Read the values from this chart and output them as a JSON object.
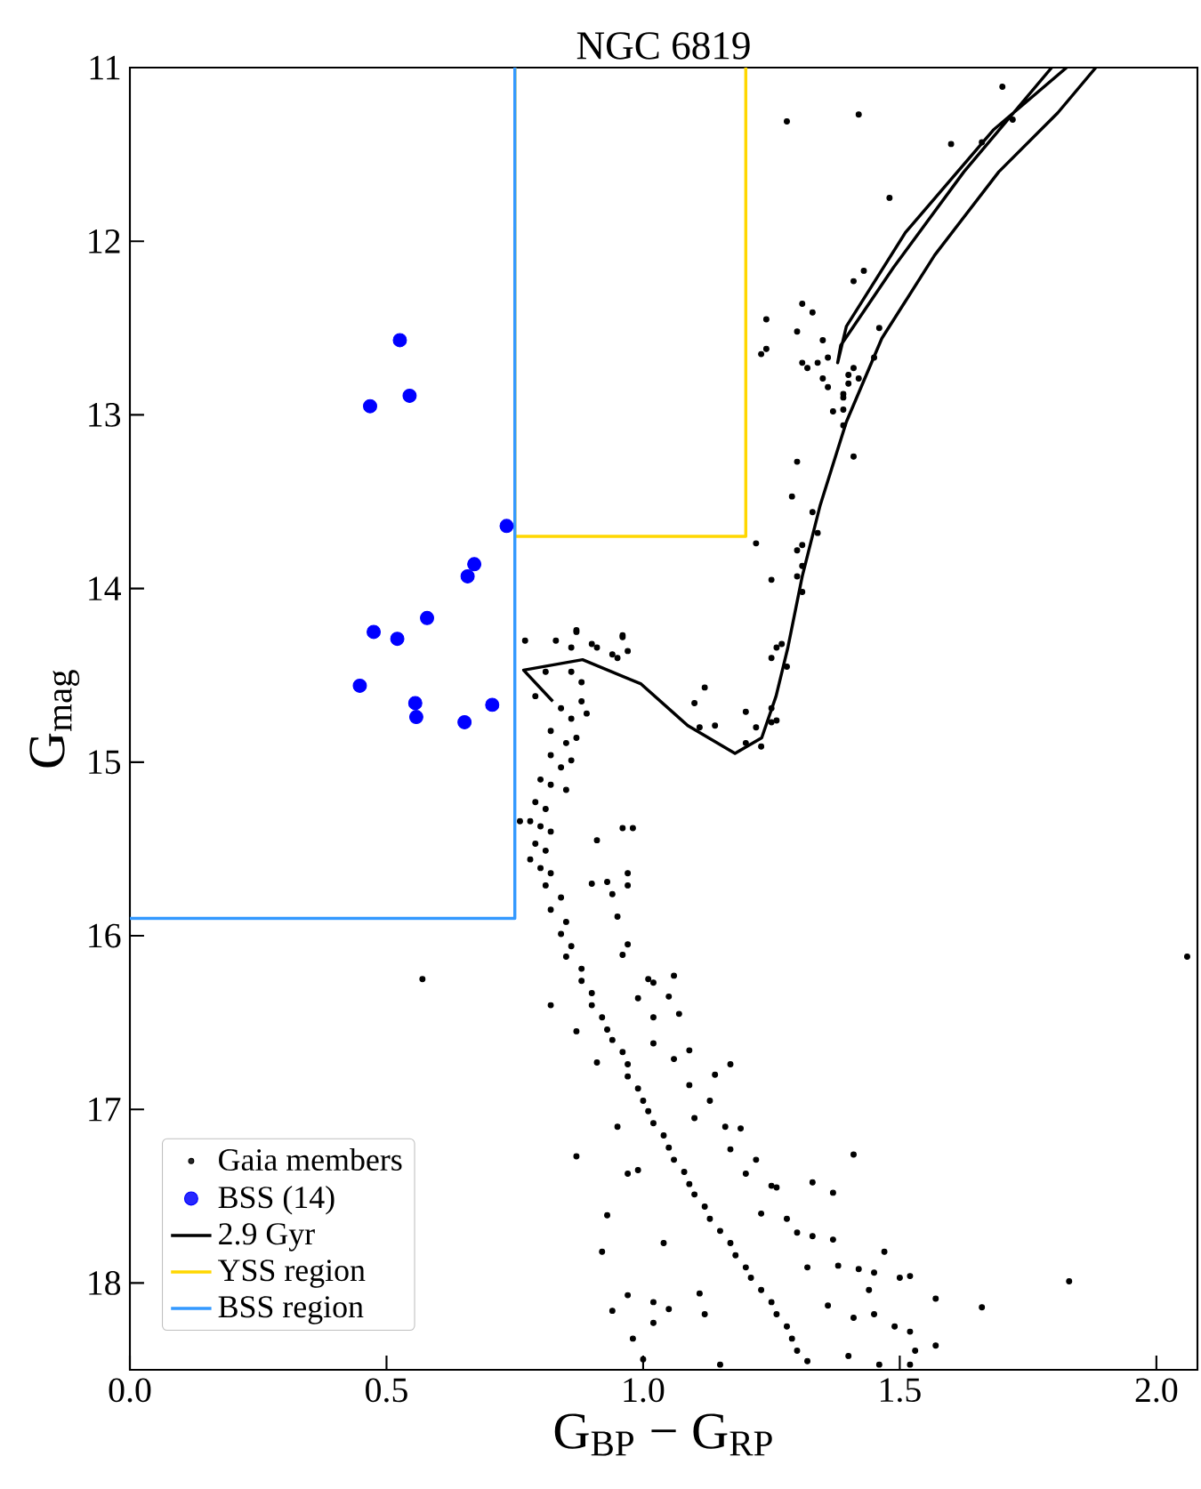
{
  "chart_data": {
    "type": "scatter",
    "title": "NGC 6819",
    "xlabel": "G$_{BP}$ − G$_{RP}$",
    "ylabel": "G$_{mag}$",
    "xlim": [
      0,
      2.08
    ],
    "ylim": [
      18.5,
      11
    ],
    "xticks": [
      {
        "value": 0,
        "label": "0.0"
      },
      {
        "value": 0.5,
        "label": "0.5"
      },
      {
        "value": 1,
        "label": "1.0"
      },
      {
        "value": 1.5,
        "label": "1.5"
      },
      {
        "value": 2,
        "label": "2.0"
      }
    ],
    "yticks": [
      11,
      12,
      13,
      14,
      15,
      16,
      17,
      18
    ],
    "legend": "bottom left",
    "series": [
      {
        "name": "Gaia members",
        "marker": "circle",
        "color": "#000000",
        "x": [
          1.28,
          1.42,
          1.7,
          1.6,
          1.66,
          1.72,
          1.48,
          1.43,
          1.41,
          1.31,
          1.33,
          1.24,
          1.3,
          1.24,
          1.23,
          1.35,
          1.31,
          1.32,
          1.34,
          1.35,
          1.36,
          1.36,
          1.4,
          1.41,
          1.42,
          1.4,
          1.39,
          1.39,
          1.37,
          1.39,
          1.39,
          1.46,
          1.45,
          1.41,
          1.3,
          1.29,
          1.33,
          1.34,
          1.22,
          1.3,
          1.31,
          1.31,
          1.25,
          1.3,
          1.31,
          1.27,
          1.26,
          1.25,
          1.28,
          1.12,
          1.1,
          1.11,
          1.14,
          1.2,
          1.22,
          1.2,
          1.23,
          1.25,
          1.26,
          1.25,
          0.77,
          0.83,
          0.87,
          0.86,
          0.9,
          0.91,
          0.94,
          0.96,
          0.97,
          0.95,
          0.86,
          0.81,
          0.88,
          0.79,
          0.87,
          0.96,
          2.06,
          0.57,
          1.83,
          0.84,
          0.86,
          0.88,
          0.89,
          0.82,
          0.85,
          0.87,
          0.82,
          0.84,
          0.86,
          0.8,
          0.82,
          0.85,
          0.79,
          0.81,
          0.78,
          0.8,
          0.82,
          0.79,
          0.81,
          0.8,
          0.82,
          0.81,
          0.84,
          0.82,
          0.85,
          0.84,
          0.86,
          0.85,
          0.88,
          0.88,
          0.9,
          0.9,
          0.92,
          0.93,
          0.94,
          0.96,
          0.97,
          0.97,
          0.99,
          1.0,
          1.01,
          1.02,
          1.04,
          1.05,
          1.06,
          1.08,
          1.09,
          1.1,
          1.12,
          1.13,
          1.15,
          1.17,
          1.18,
          1.2,
          1.21,
          1.23,
          1.25,
          1.26,
          1.28,
          1.29,
          1.3,
          1.32,
          0.91,
          0.96,
          0.98,
          0.97,
          0.97,
          0.9,
          0.93,
          0.94,
          0.95,
          0.97,
          0.96,
          1.01,
          1.02,
          1.06,
          1.05,
          1.07,
          1.02,
          0.99,
          1.02,
          1.09,
          1.06,
          1.14,
          1.17,
          1.09,
          1.13,
          1.1,
          1.16,
          1.19,
          1.17,
          1.22,
          1.2,
          1.25,
          1.26,
          1.33,
          1.37,
          1.41,
          1.23,
          1.28,
          1.3,
          1.33,
          1.37,
          1.32,
          1.38,
          1.42,
          1.45,
          1.47,
          1.5,
          1.52,
          1.44,
          1.36,
          1.41,
          1.45,
          1.49,
          1.52,
          1.57,
          1.66,
          1.53,
          1.57,
          1.4,
          1.46,
          1.52,
          0.78,
          0.76,
          0.82,
          0.87,
          0.91,
          0.95,
          0.87,
          0.97,
          0.99,
          0.93,
          0.92,
          1.04,
          0.97,
          0.94,
          1.02,
          1.02,
          1.05,
          0.98,
          1.0,
          1.15,
          1.11,
          1.12
        ],
        "values": [
          11.31,
          11.27,
          11.11,
          11.44,
          11.43,
          11.3,
          11.75,
          12.17,
          12.23,
          12.36,
          12.41,
          12.45,
          12.52,
          12.62,
          12.65,
          12.57,
          12.7,
          12.73,
          12.7,
          12.79,
          12.84,
          12.67,
          12.77,
          12.73,
          12.79,
          12.82,
          12.88,
          12.9,
          12.98,
          12.97,
          13.06,
          12.5,
          12.67,
          13.24,
          13.27,
          13.47,
          13.56,
          13.68,
          13.74,
          13.78,
          13.75,
          13.87,
          13.95,
          13.93,
          14.02,
          14.32,
          14.34,
          14.4,
          14.45,
          14.57,
          14.66,
          14.8,
          14.79,
          14.71,
          14.8,
          14.89,
          14.91,
          14.77,
          14.76,
          14.69,
          14.3,
          14.3,
          14.25,
          14.34,
          14.32,
          14.34,
          14.38,
          14.28,
          14.36,
          14.4,
          14.48,
          14.48,
          14.54,
          14.62,
          14.24,
          14.27,
          16.12,
          16.25,
          17.99,
          14.69,
          14.75,
          14.65,
          14.72,
          14.82,
          14.89,
          14.86,
          14.96,
          15.03,
          14.99,
          15.1,
          15.13,
          15.16,
          15.23,
          15.27,
          15.34,
          15.37,
          15.4,
          15.47,
          15.51,
          15.61,
          15.64,
          15.71,
          15.78,
          15.85,
          15.92,
          15.99,
          16.06,
          16.12,
          16.19,
          16.26,
          16.33,
          16.4,
          16.47,
          16.54,
          16.6,
          16.67,
          16.74,
          16.81,
          16.88,
          16.95,
          17.01,
          17.08,
          17.15,
          17.22,
          17.29,
          17.36,
          17.43,
          17.49,
          17.56,
          17.63,
          17.7,
          17.77,
          17.84,
          17.91,
          17.97,
          18.04,
          18.11,
          18.18,
          18.25,
          18.32,
          18.39,
          18.45,
          15.45,
          15.38,
          15.38,
          15.64,
          15.71,
          15.7,
          15.69,
          15.76,
          15.89,
          16.05,
          16.11,
          16.25,
          16.27,
          16.23,
          16.35,
          16.45,
          16.47,
          16.36,
          16.62,
          16.66,
          16.71,
          16.8,
          16.74,
          16.86,
          16.95,
          17.05,
          17.1,
          17.11,
          17.23,
          17.29,
          17.37,
          17.44,
          17.45,
          17.42,
          17.48,
          17.26,
          17.6,
          17.63,
          17.71,
          17.73,
          17.75,
          17.91,
          17.9,
          17.92,
          17.94,
          17.82,
          17.97,
          17.96,
          18.04,
          18.13,
          18.2,
          18.18,
          18.25,
          18.28,
          18.09,
          18.14,
          18.39,
          18.36,
          18.42,
          18.47,
          18.47,
          15.56,
          15.34,
          16.4,
          16.55,
          16.73,
          17.1,
          17.27,
          17.37,
          17.35,
          17.61,
          17.82,
          17.77,
          18.07,
          18.16,
          18.11,
          18.23,
          18.15,
          18.32,
          18.44,
          18.47,
          18.06,
          18.18
        ]
      },
      {
        "name": "BSS (14)",
        "marker": "circle",
        "color": "#0000ff",
        "x": [
          0.526,
          0.468,
          0.545,
          0.734,
          0.671,
          0.658,
          0.579,
          0.475,
          0.521,
          0.448,
          0.556,
          0.558,
          0.706,
          0.652
        ],
        "values": [
          12.57,
          12.95,
          12.89,
          13.64,
          13.86,
          13.93,
          14.17,
          14.25,
          14.29,
          14.56,
          14.66,
          14.74,
          14.67,
          14.77
        ]
      },
      {
        "name": "2.9 Gyr",
        "type": "line",
        "marker": "none",
        "color": "#000000",
        "x": [
          0.824,
          0.767,
          0.882,
          0.996,
          1.087,
          1.179,
          1.231,
          1.259,
          1.282,
          1.31,
          1.345,
          1.396,
          1.465,
          1.568,
          1.693,
          1.808,
          1.882,
          null,
          1.825,
          1.682,
          1.511,
          1.396,
          1.379,
          1.385,
          1.488,
          1.625,
          1.796
        ],
        "values": [
          14.65,
          14.47,
          14.41,
          14.55,
          14.79,
          14.95,
          14.86,
          14.62,
          14.34,
          13.93,
          13.52,
          13.04,
          12.56,
          12.08,
          11.6,
          11.26,
          11.0,
          null,
          11.0,
          11.36,
          11.95,
          12.49,
          12.7,
          12.6,
          12.15,
          11.6,
          11.0
        ]
      },
      {
        "name": "YSS region",
        "type": "line",
        "marker": "none",
        "color": "#ffd700",
        "x": [
          0.75,
          0.75,
          1.2,
          1.2
        ],
        "values": [
          11,
          13.7,
          13.7,
          11
        ]
      },
      {
        "name": "BSS region",
        "type": "line",
        "marker": "none",
        "color": "#3399ff",
        "x": [
          0,
          0.75,
          0.75
        ],
        "values": [
          15.9,
          15.9,
          11
        ]
      }
    ]
  }
}
